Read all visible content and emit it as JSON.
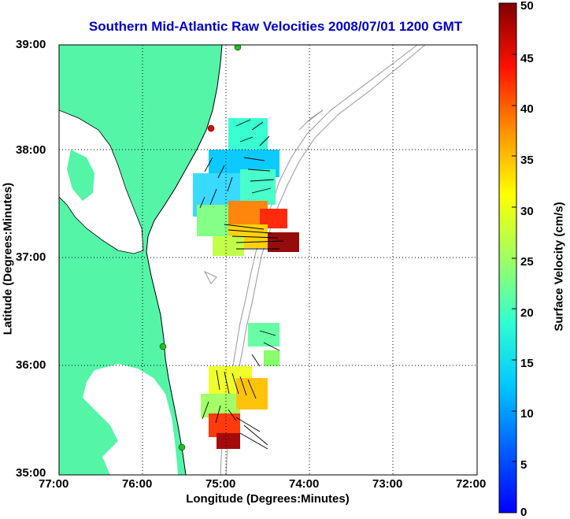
{
  "title": "Southern Mid-Atlantic Raw Velocities 2008/07/01 1200 GMT",
  "xlabel": "Longitude (Degrees:Minutes)",
  "ylabel": "Latitude (Degrees:Minutes)",
  "colorbar": {
    "label": "Surface Velocity (cm/s)",
    "ticks": [
      "0",
      "5",
      "10",
      "15",
      "20",
      "25",
      "30",
      "35",
      "40",
      "45",
      "50"
    ],
    "min": 0,
    "max": 50
  },
  "x_ticks": [
    "77:00",
    "76:00",
    "75:00",
    "74:00",
    "73:00",
    "72:00"
  ],
  "y_ticks": [
    "39:00",
    "38:00",
    "37:00",
    "36:00",
    "35:00"
  ],
  "colors": {
    "land": "#55f5a8",
    "water": "#ffffff",
    "bathymetry": "#a0a0a0",
    "title": "#0000cc"
  }
}
